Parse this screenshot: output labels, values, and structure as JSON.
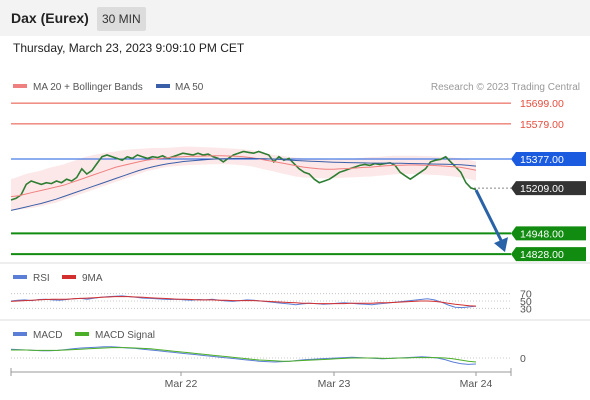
{
  "header": {
    "instrument": "Dax (Eurex)",
    "interval": "30 MIN"
  },
  "datetime": "Thursday, March 23, 2023 9:09:10 PM CET",
  "colors": {
    "bollinger": "#f08080",
    "ma50": "#3a5fa8",
    "resistance": "#e74c3c",
    "pivot": "#1a5be0",
    "support": "#118c11",
    "current": "#333333",
    "candle_up": "#2e7d32",
    "candle_down": "#c62828",
    "arrow": "#2a62a8",
    "rsi": "#5b7fd6",
    "rsi_ma": "#d32f2f",
    "macd": "#5b7fd6",
    "macd_signal": "#4caf28"
  },
  "chart_data": {
    "type": "line",
    "legend": {
      "ma": "MA 20 + Bollinger Bands",
      "ma50": "MA 50"
    },
    "watermark": "Research © 2023 Trading Central",
    "x_ticks": [
      "Mar 22",
      "Mar 23",
      "Mar 24"
    ],
    "ylim": [
      14800,
      15740
    ],
    "price": [
      15140,
      15150,
      15170,
      15230,
      15250,
      15240,
      15230,
      15240,
      15235,
      15250,
      15240,
      15260,
      15250,
      15270,
      15320,
      15290,
      15310,
      15350,
      15390,
      15400,
      15390,
      15380,
      15370,
      15390,
      15380,
      15400,
      15390,
      15380,
      15390,
      15385,
      15395,
      15380,
      15390,
      15400,
      15410,
      15405,
      15400,
      15410,
      15400,
      15405,
      15390,
      15380,
      15360,
      15380,
      15400,
      15410,
      15420,
      15415,
      15410,
      15420,
      15410,
      15400,
      15360,
      15390,
      15370,
      15380,
      15350,
      15320,
      15300,
      15290,
      15260,
      15240,
      15250,
      15260,
      15280,
      15300,
      15310,
      15320,
      15330,
      15340,
      15345,
      15340,
      15350,
      15345,
      15350,
      15355,
      15340,
      15300,
      15280,
      15260,
      15280,
      15300,
      15320,
      15360,
      15370,
      15375,
      15390,
      15360,
      15330,
      15300,
      15240,
      15210,
      15200
    ],
    "ma20": [
      15160,
      15165,
      15175,
      15185,
      15195,
      15205,
      15215,
      15225,
      15240,
      15255,
      15270,
      15285,
      15300,
      15315,
      15330,
      15340,
      15350,
      15360,
      15370,
      15375,
      15380,
      15385,
      15388,
      15390,
      15392,
      15393,
      15394,
      15395,
      15395,
      15394,
      15392,
      15390,
      15385,
      15378,
      15370,
      15362,
      15354,
      15346,
      15338,
      15330,
      15325,
      15320,
      15318,
      15318,
      15320,
      15322,
      15325,
      15328,
      15330,
      15334,
      15338,
      15340,
      15341,
      15342,
      15342,
      15341,
      15340,
      15338,
      15335,
      15332,
      15328,
      15320,
      15312
    ],
    "bollinger_upper": [
      15260,
      15275,
      15290,
      15300,
      15310,
      15325,
      15335,
      15345,
      15360,
      15375,
      15390,
      15400,
      15408,
      15415,
      15420,
      15428,
      15432,
      15435,
      15438,
      15440,
      15440,
      15442,
      15445,
      15448,
      15448,
      15446,
      15445,
      15443,
      15440,
      15438,
      15436,
      15432,
      15428,
      15420,
      15410,
      15400,
      15395,
      15390,
      15385,
      15380,
      15378,
      15375,
      15373,
      15372,
      15374,
      15376,
      15380,
      15384,
      15388,
      15390,
      15392,
      15395,
      15396,
      15396,
      15395,
      15394,
      15392,
      15390,
      15388,
      15385,
      15380,
      15372,
      15362
    ],
    "bollinger_lower": [
      15080,
      15085,
      15090,
      15095,
      15105,
      15115,
      15125,
      15140,
      15155,
      15170,
      15185,
      15200,
      15215,
      15230,
      15245,
      15260,
      15275,
      15290,
      15305,
      15315,
      15325,
      15332,
      15336,
      15340,
      15342,
      15344,
      15345,
      15346,
      15347,
      15346,
      15344,
      15340,
      15335,
      15325,
      15315,
      15305,
      15295,
      15285,
      15275,
      15270,
      15268,
      15266,
      15265,
      15266,
      15268,
      15270,
      15272,
      15274,
      15276,
      15280,
      15284,
      15288,
      15290,
      15290,
      15290,
      15288,
      15286,
      15284,
      15280,
      15276,
      15270,
      15262,
      15252
    ],
    "ma50": [
      15080,
      15090,
      15100,
      15110,
      15120,
      15132,
      15145,
      15160,
      15175,
      15190,
      15205,
      15220,
      15235,
      15250,
      15265,
      15280,
      15295,
      15310,
      15322,
      15333,
      15342,
      15350,
      15356,
      15362,
      15366,
      15370,
      15373,
      15376,
      15378,
      15379,
      15380,
      15380,
      15380,
      15379,
      15378,
      15376,
      15374,
      15371,
      15368,
      15366,
      15364,
      15362,
      15360,
      15358,
      15357,
      15356,
      15355,
      15354,
      15353,
      15353,
      15353,
      15352,
      15352,
      15351,
      15350,
      15349,
      15348,
      15347,
      15346,
      15345,
      15343,
      15340,
      15336
    ],
    "levels": [
      {
        "label": "15699.00",
        "value": 15699,
        "kind": "resistance"
      },
      {
        "label": "15579.00",
        "value": 15579,
        "kind": "resistance"
      },
      {
        "label": "15377.00",
        "value": 15377,
        "kind": "pivot"
      },
      {
        "label": "15209.00",
        "value": 15209,
        "kind": "current"
      },
      {
        "label": "14948.00",
        "value": 14948,
        "kind": "support"
      },
      {
        "label": "14828.00",
        "value": 14828,
        "kind": "support"
      }
    ],
    "forecast_arrow": {
      "from": 15209,
      "to": 14828
    },
    "rsi": {
      "legend": {
        "rsi": "RSI",
        "ma": "9MA"
      },
      "ticks": [
        "70",
        "50",
        "30"
      ],
      "ylim": [
        20,
        80
      ],
      "values": [
        50,
        52,
        53,
        51,
        54,
        55,
        53,
        52,
        54,
        56,
        57,
        55,
        58,
        60,
        62,
        63,
        64,
        62,
        60,
        58,
        57,
        56,
        55,
        54,
        55,
        53,
        52,
        54,
        53,
        55,
        52,
        50,
        49,
        51,
        53,
        52,
        50,
        48,
        46,
        44,
        42,
        40,
        42,
        44,
        43,
        41,
        42,
        44,
        45,
        44,
        42,
        41,
        40,
        42,
        44,
        46,
        48,
        50,
        52,
        54,
        56,
        53,
        47,
        39,
        33,
        32,
        34,
        36
      ],
      "ma_values": [
        49,
        50,
        51,
        52,
        53,
        54,
        55,
        55,
        55,
        56,
        57,
        58,
        59,
        60,
        61,
        62,
        62,
        62,
        61,
        60,
        59,
        58,
        57,
        56,
        55,
        55,
        54,
        53,
        53,
        53,
        52,
        52,
        51,
        51,
        51,
        51,
        50,
        49,
        48,
        47,
        46,
        45,
        44,
        44,
        43,
        43,
        43,
        43,
        43,
        44,
        44,
        44,
        44,
        45,
        45,
        46,
        47,
        48,
        49,
        50,
        50,
        49,
        47,
        44,
        41,
        39,
        37,
        36
      ]
    },
    "macd": {
      "legend": {
        "macd": "MACD",
        "signal": "MACD Signal"
      },
      "ticks": [
        "0"
      ],
      "ylim": [
        -20,
        40
      ],
      "values": [
        22,
        21,
        20,
        19,
        18,
        18,
        19,
        21,
        23,
        25,
        26,
        27,
        28,
        28,
        27,
        25,
        24,
        22,
        20,
        18,
        16,
        14,
        12,
        10,
        8,
        6,
        4,
        2,
        0,
        -2,
        -4,
        -6,
        -8,
        -9,
        -10,
        -9,
        -8,
        -6,
        -4,
        -3,
        -2,
        -1,
        0,
        1,
        2,
        1,
        0,
        -1,
        -2,
        -1,
        0,
        1,
        2,
        3,
        2,
        0,
        -4,
        -10,
        -14,
        -16,
        -15
      ],
      "signal_values": [
        20,
        20,
        20,
        19,
        19,
        19,
        19,
        20,
        21,
        22,
        23,
        24,
        25,
        26,
        26,
        26,
        25,
        24,
        23,
        21,
        19,
        17,
        15,
        13,
        11,
        9,
        7,
        5,
        3,
        1,
        -1,
        -3,
        -5,
        -6,
        -7,
        -8,
        -8,
        -7,
        -6,
        -5,
        -4,
        -3,
        -2,
        -1,
        0,
        0,
        0,
        0,
        -1,
        -1,
        0,
        0,
        1,
        1,
        1,
        1,
        0,
        -2,
        -5,
        -8,
        -10
      ]
    }
  }
}
